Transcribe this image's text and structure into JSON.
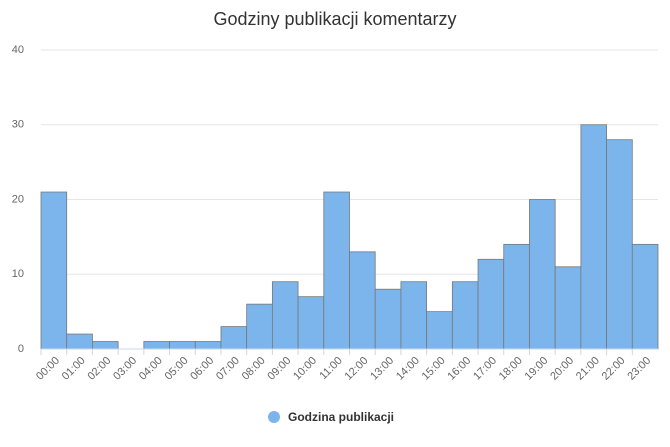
{
  "chart_data": {
    "type": "bar",
    "title": "Godziny publikacji komentarzy",
    "categories": [
      "00:00",
      "01:00",
      "02:00",
      "03:00",
      "04:00",
      "05:00",
      "06:00",
      "07:00",
      "08:00",
      "09:00",
      "10:00",
      "11:00",
      "12:00",
      "13:00",
      "14:00",
      "15:00",
      "16:00",
      "17:00",
      "18:00",
      "19:00",
      "20:00",
      "21:00",
      "22:00",
      "23:00"
    ],
    "series": [
      {
        "name": "Godzina publikacji",
        "color": "#7cb5ec",
        "values": [
          21,
          2,
          1,
          0,
          1,
          1,
          1,
          3,
          6,
          9,
          7,
          21,
          13,
          8,
          9,
          5,
          9,
          12,
          14,
          20,
          11,
          30,
          28,
          14
        ]
      }
    ],
    "ylim": [
      0,
      40
    ],
    "yticks": [
      0,
      10,
      20,
      30,
      40
    ],
    "grid": true
  }
}
